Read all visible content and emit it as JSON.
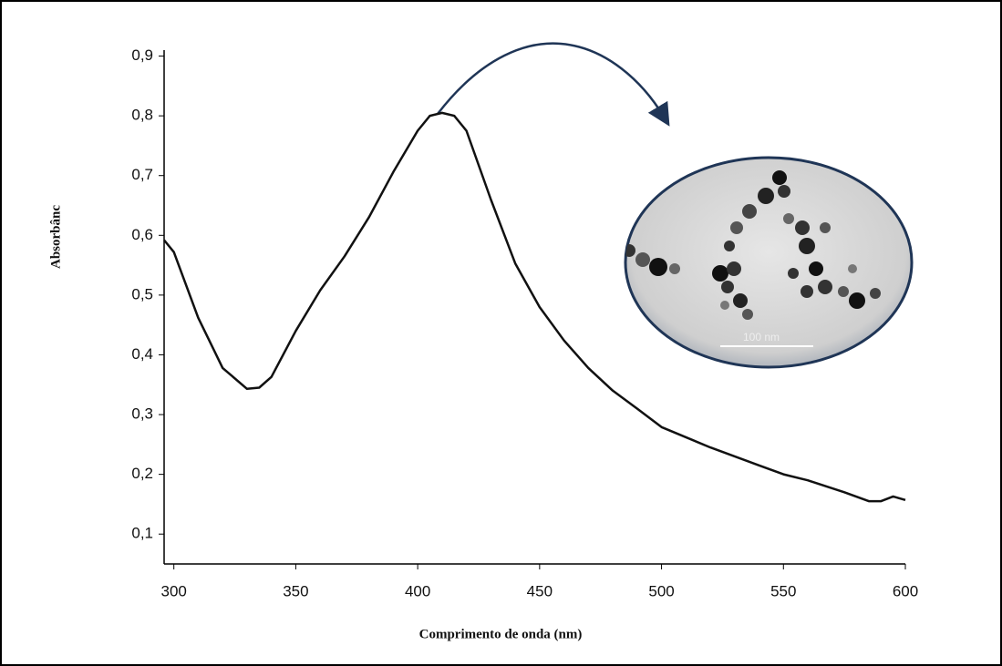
{
  "chart_data": {
    "type": "line",
    "x_label": "Comprimento de onda (nm)",
    "y_label": "Absorbânc",
    "image_scale_label": "100 nm",
    "x": [
      296,
      300,
      310,
      320,
      330,
      335,
      340,
      350,
      360,
      370,
      380,
      390,
      400,
      405,
      410,
      415,
      420,
      430,
      440,
      450,
      460,
      470,
      480,
      490,
      500,
      520,
      540,
      550,
      560,
      575,
      585,
      590,
      595,
      600
    ],
    "values": [
      0.592,
      0.572,
      0.462,
      0.378,
      0.343,
      0.345,
      0.363,
      0.44,
      0.508,
      0.565,
      0.63,
      0.706,
      0.775,
      0.8,
      0.805,
      0.8,
      0.775,
      0.66,
      0.553,
      0.48,
      0.424,
      0.378,
      0.34,
      0.31,
      0.279,
      0.245,
      0.215,
      0.2,
      0.19,
      0.17,
      0.155,
      0.155,
      0.163,
      0.157
    ],
    "color": "#111111",
    "xlim": [
      296,
      600
    ],
    "ylim": [
      0.05,
      0.91
    ],
    "xticks": [
      300,
      350,
      400,
      450,
      500,
      550,
      600
    ],
    "yticks": [
      {
        "value": 0.1,
        "label": "0,1"
      },
      {
        "value": 0.2,
        "label": "0,2"
      },
      {
        "value": 0.3,
        "label": "0,3"
      },
      {
        "value": 0.4,
        "label": "0,4"
      },
      {
        "value": 0.5,
        "label": "0,5"
      },
      {
        "value": 0.6,
        "label": "0,6"
      },
      {
        "value": 0.7,
        "label": "0,7"
      },
      {
        "value": 0.8,
        "label": "0,8"
      },
      {
        "value": 0.9,
        "label": "0,9"
      }
    ],
    "grid": false
  }
}
